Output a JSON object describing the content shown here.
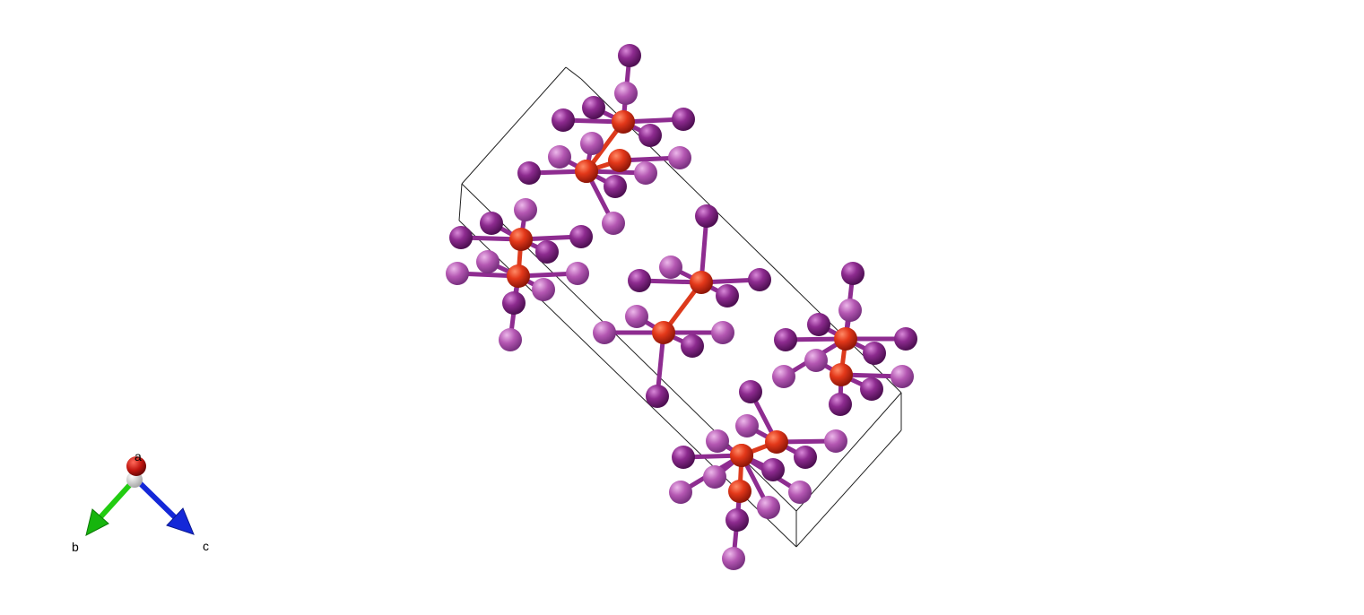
{
  "axes": {
    "a": "a",
    "b": "b",
    "c": "c",
    "a_color": "#c0150f",
    "b_color": "#22cc11",
    "c_color": "#1428d8"
  },
  "structure": {
    "cell_line_color": "#222222",
    "metal_color": "#e2381a",
    "ligand_color": "#8a2a8e",
    "ligand_light_color": "#b655b0"
  }
}
